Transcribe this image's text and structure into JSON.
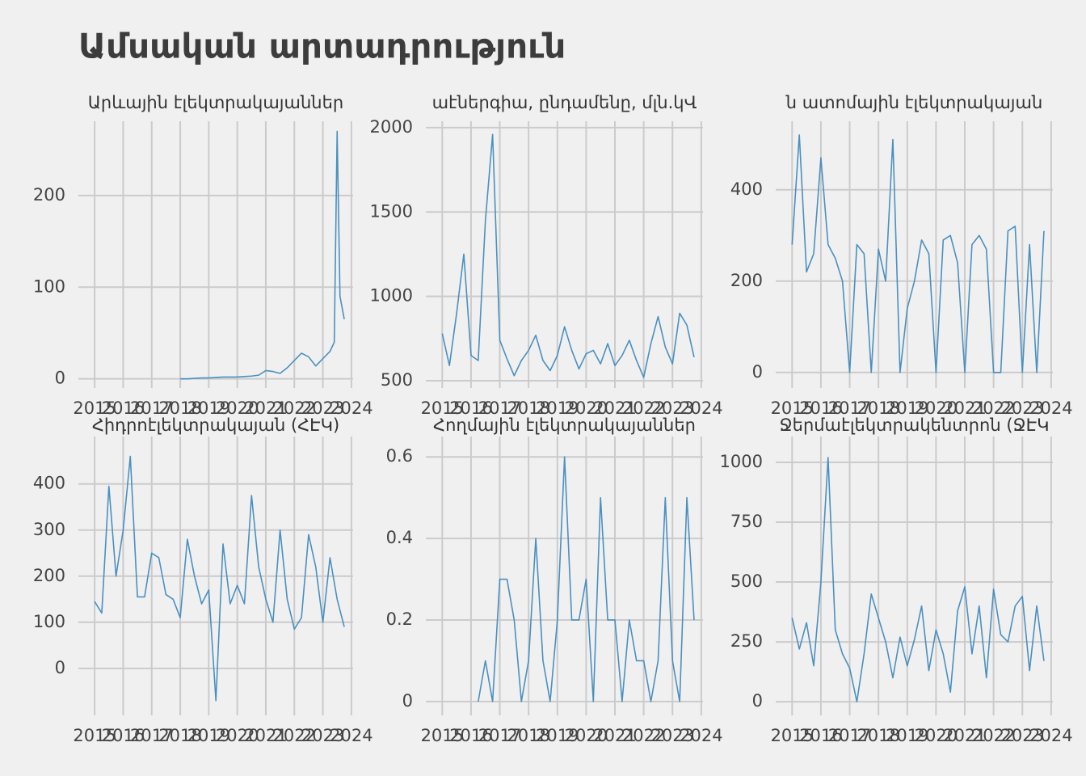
{
  "title": "Ամսական արտադրություն",
  "chart_data": [
    {
      "type": "line",
      "title": "Արևային էլեկտրակայաններ",
      "color": "#4a90c0",
      "x": [
        2018,
        2018.25,
        2018.5,
        2018.75,
        2019,
        2019.25,
        2019.5,
        2019.75,
        2020,
        2020.25,
        2020.5,
        2020.75,
        2021,
        2021.25,
        2021.5,
        2021.75,
        2022,
        2022.25,
        2022.5,
        2022.75,
        2023,
        2023.25,
        2023.4,
        2023.5,
        2023.6,
        2023.75
      ],
      "values": [
        0,
        0,
        0.5,
        1,
        1,
        1.5,
        2,
        2,
        2,
        2.5,
        3,
        4,
        9,
        8,
        6,
        12,
        20,
        28,
        24,
        14,
        22,
        30,
        40,
        270,
        90,
        65
      ],
      "xlim": [
        2014.43,
        2024.06
      ],
      "ylim": [
        -10,
        281
      ],
      "xticks": [
        2015,
        2016,
        2017,
        2018,
        2019,
        2020,
        2021,
        2022,
        2023,
        2024
      ],
      "yticks": [
        0,
        100,
        200
      ],
      "grid": true
    },
    {
      "type": "line",
      "title": "աէներգիա, ընդամենը, մլն.կՎ",
      "color": "#4a90c0",
      "x": [
        2015,
        2015.25,
        2015.5,
        2015.75,
        2016,
        2016.25,
        2016.5,
        2016.75,
        2017,
        2017.25,
        2017.5,
        2017.75,
        2018,
        2018.25,
        2018.5,
        2018.75,
        2019,
        2019.25,
        2019.5,
        2019.75,
        2020,
        2020.25,
        2020.5,
        2020.75,
        2021,
        2021.25,
        2021.5,
        2021.75,
        2022,
        2022.25,
        2022.5,
        2022.75,
        2023,
        2023.25,
        2023.5,
        2023.75
      ],
      "values": [
        780,
        590,
        900,
        1250,
        650,
        620,
        1450,
        1960,
        740,
        630,
        530,
        620,
        680,
        770,
        620,
        560,
        650,
        820,
        680,
        570,
        660,
        680,
        600,
        720,
        590,
        650,
        740,
        620,
        520,
        720,
        880,
        700,
        600,
        900,
        830,
        640
      ],
      "xlim": [
        2014.43,
        2024.06
      ],
      "ylim": [
        457,
        2038
      ],
      "xticks": [
        2015,
        2016,
        2017,
        2018,
        2019,
        2020,
        2021,
        2022,
        2023,
        2024
      ],
      "yticks": [
        500,
        1000,
        1500,
        2000
      ],
      "grid": true
    },
    {
      "type": "line",
      "title": "ն ատոմային էլեկտրակայան",
      "color": "#4a90c0",
      "x": [
        2015,
        2015.25,
        2015.5,
        2015.75,
        2016,
        2016.25,
        2016.5,
        2016.75,
        2017,
        2017.25,
        2017.5,
        2017.75,
        2018,
        2018.25,
        2018.5,
        2018.75,
        2019,
        2019.25,
        2019.5,
        2019.75,
        2020,
        2020.25,
        2020.5,
        2020.75,
        2021,
        2021.25,
        2021.5,
        2021.75,
        2022,
        2022.25,
        2022.5,
        2022.75,
        2023,
        2023.25,
        2023.5,
        2023.75
      ],
      "values": [
        280,
        520,
        220,
        260,
        470,
        280,
        250,
        200,
        0,
        280,
        260,
        0,
        270,
        200,
        510,
        0,
        140,
        200,
        290,
        260,
        0,
        290,
        300,
        240,
        0,
        280,
        300,
        270,
        0,
        0,
        310,
        320,
        0,
        280,
        0,
        310
      ],
      "xlim": [
        2014.43,
        2024.06
      ],
      "ylim": [
        -34,
        550
      ],
      "xticks": [
        2015,
        2016,
        2017,
        2018,
        2019,
        2020,
        2021,
        2022,
        2023,
        2024
      ],
      "yticks": [
        0,
        200,
        400
      ],
      "grid": true
    },
    {
      "type": "line",
      "title": "Հիդրոէլեկտրակայան (ՀԷԿ)",
      "color": "#4a90c0",
      "x": [
        2015,
        2015.25,
        2015.5,
        2015.75,
        2016,
        2016.25,
        2016.5,
        2016.75,
        2017,
        2017.25,
        2017.5,
        2017.75,
        2018,
        2018.25,
        2018.5,
        2018.75,
        2019,
        2019.25,
        2019.5,
        2019.75,
        2020,
        2020.25,
        2020.5,
        2020.75,
        2021,
        2021.25,
        2021.5,
        2021.75,
        2022,
        2022.25,
        2022.5,
        2022.75,
        2023,
        2023.25,
        2023.5,
        2023.75
      ],
      "values": [
        145,
        120,
        395,
        200,
        300,
        460,
        155,
        155,
        250,
        240,
        160,
        150,
        110,
        280,
        200,
        140,
        170,
        -70,
        270,
        140,
        180,
        140,
        375,
        220,
        150,
        100,
        300,
        150,
        85,
        110,
        290,
        220,
        100,
        240,
        150,
        90
      ],
      "xlim": [
        2014.43,
        2024.06
      ],
      "ylim": [
        -102,
        503
      ],
      "xticks": [
        2015,
        2016,
        2017,
        2018,
        2019,
        2020,
        2021,
        2022,
        2023,
        2024
      ],
      "yticks": [
        0,
        100,
        200,
        300,
        400
      ],
      "grid": true
    },
    {
      "type": "line",
      "title": "Հողմային էլեկտրակայաններ",
      "color": "#4a90c0",
      "x": [
        2015,
        2015.25,
        2015.5,
        2015.75,
        2016,
        2016.25,
        2016.5,
        2016.75,
        2017,
        2017.25,
        2017.5,
        2017.75,
        2018,
        2018.25,
        2018.5,
        2018.75,
        2019,
        2019.25,
        2019.5,
        2019.75,
        2020,
        2020.25,
        2020.5,
        2020.75,
        2021,
        2021.25,
        2021.5,
        2021.75,
        2022,
        2022.25,
        2022.5,
        2022.75,
        2023,
        2023.25,
        2023.5,
        2023.75
      ],
      "values": [
        null,
        null,
        null,
        null,
        null,
        0,
        0.1,
        0,
        0.3,
        0.3,
        0.2,
        0,
        0.1,
        0.4,
        0.1,
        0,
        0.2,
        0.6,
        0.2,
        0.2,
        0.3,
        0,
        0.5,
        0.2,
        0.2,
        0,
        0.2,
        0.1,
        0.1,
        0,
        0.1,
        0.5,
        0.1,
        0,
        0.5,
        0.2
      ],
      "xlim": [
        2014.43,
        2024.06
      ],
      "ylim": [
        -0.034,
        0.65
      ],
      "xticks": [
        2015,
        2016,
        2017,
        2018,
        2019,
        2020,
        2021,
        2022,
        2023,
        2024
      ],
      "yticks": [
        0.0,
        0.2,
        0.4,
        0.6
      ],
      "grid": true
    },
    {
      "type": "line",
      "title": "Ջերմաէլեկտրակենտրոն (ՋԷԿ",
      "color": "#4a90c0",
      "x": [
        2015,
        2015.25,
        2015.5,
        2015.75,
        2016,
        2016.25,
        2016.5,
        2016.75,
        2017,
        2017.25,
        2017.5,
        2017.75,
        2018,
        2018.25,
        2018.5,
        2018.75,
        2019,
        2019.25,
        2019.5,
        2019.75,
        2020,
        2020.25,
        2020.5,
        2020.75,
        2021,
        2021.25,
        2021.5,
        2021.75,
        2022,
        2022.25,
        2022.5,
        2022.75,
        2023,
        2023.25,
        2023.5,
        2023.75
      ],
      "values": [
        350,
        220,
        330,
        150,
        500,
        1020,
        300,
        200,
        140,
        0,
        200,
        450,
        350,
        250,
        100,
        270,
        150,
        260,
        400,
        130,
        300,
        200,
        40,
        380,
        480,
        200,
        400,
        100,
        470,
        280,
        250,
        400,
        440,
        130,
        400,
        170
      ],
      "xlim": [
        2014.43,
        2024.06
      ],
      "ylim": [
        -57,
        1108
      ],
      "xticks": [
        2015,
        2016,
        2017,
        2018,
        2019,
        2020,
        2021,
        2022,
        2023,
        2024
      ],
      "yticks": [
        0,
        250,
        500,
        750,
        1000
      ],
      "grid": true
    }
  ]
}
